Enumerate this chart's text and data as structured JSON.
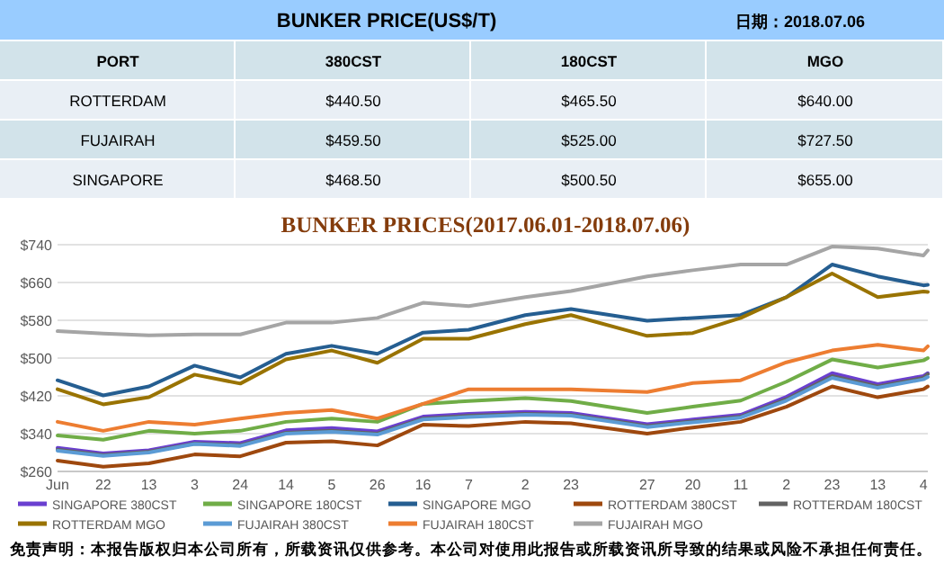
{
  "chart_data": [
    {
      "type": "other",
      "title": "BUNKER  PRICE(US$/T)",
      "subtitle": "日期：2018.07.06",
      "ylabel": "PORT",
      "categories": [
        "380CST",
        "180CST",
        "MGO"
      ],
      "y_categories": [
        "ROTTERDAM",
        "FUJAIRAH",
        "SINGAPORE"
      ],
      "cell_labels": [
        [
          "$440.50",
          "$465.50",
          "$640.00"
        ],
        [
          "$459.50",
          "$525.00",
          "$727.50"
        ],
        [
          "$468.50",
          "$500.50",
          "$655.00"
        ]
      ]
    },
    {
      "type": "line",
      "title": "BUNKER PRICES(2017.06.01-2018.07.06)",
      "legend": "bottom",
      "grid": "y",
      "x": [
        "2017-06-01",
        "2017-06-22",
        "2017-07-13",
        "2017-08-03",
        "2017-08-24",
        "2017-09-14",
        "2017-10-05",
        "2017-10-26",
        "2017-11-16",
        "2017-12-07",
        "2018-01-02",
        "2018-01-23",
        "2018-02-27",
        "2018-03-20",
        "2018-04-11",
        "2018-05-02",
        "2018-05-23",
        "2018-06-13",
        "2018-07-04",
        "2018-07-06"
      ],
      "xlim": [
        "2017-06-01",
        "2018-07-06"
      ],
      "xticks": [
        {
          "value": "2017-06-01",
          "label": "Jun"
        },
        {
          "value": "2017-06-22",
          "label": "22"
        },
        {
          "value": "2017-07-13",
          "label": "13"
        },
        {
          "value": "2017-08-03",
          "label": "3"
        },
        {
          "value": "2017-08-24",
          "label": "24"
        },
        {
          "value": "2017-09-14",
          "label": "14"
        },
        {
          "value": "2017-10-05",
          "label": "5"
        },
        {
          "value": "2017-10-26",
          "label": "26"
        },
        {
          "value": "2017-11-16",
          "label": "16"
        },
        {
          "value": "2017-12-07",
          "label": "7"
        },
        {
          "value": "2018-01-02",
          "label": "2"
        },
        {
          "value": "2018-01-23",
          "label": "23"
        },
        {
          "value": "2018-02-27",
          "label": "27"
        },
        {
          "value": "2018-03-20",
          "label": "20"
        },
        {
          "value": "2018-04-11",
          "label": "11"
        },
        {
          "value": "2018-05-02",
          "label": "2"
        },
        {
          "value": "2018-05-23",
          "label": "23"
        },
        {
          "value": "2018-06-13",
          "label": "13"
        },
        {
          "value": "2018-07-04",
          "label": "4"
        }
      ],
      "ylim": [
        260,
        740
      ],
      "yticks": [
        {
          "value": 260,
          "label": "$260"
        },
        {
          "value": 340,
          "label": "$340"
        },
        {
          "value": 420,
          "label": "$420"
        },
        {
          "value": 500,
          "label": "$500"
        },
        {
          "value": 580,
          "label": "$580"
        },
        {
          "value": 660,
          "label": "$660"
        },
        {
          "value": 740,
          "label": "$740"
        }
      ],
      "series": [
        {
          "name": "SINGAPORE 380CST",
          "color": "#6a3fd0",
          "values": [
            310,
            298,
            305,
            323,
            320,
            347,
            352,
            345,
            376,
            382,
            386,
            384,
            360,
            370,
            380,
            418,
            468,
            445,
            462,
            468
          ]
        },
        {
          "name": "SINGAPORE 180CST",
          "color": "#70ad47",
          "values": [
            336,
            327,
            346,
            340,
            346,
            365,
            372,
            365,
            403,
            409,
            415,
            409,
            384,
            397,
            410,
            450,
            497,
            480,
            495,
            500
          ]
        },
        {
          "name": "SINGAPORE MGO",
          "color": "#255e91",
          "values": [
            453,
            421,
            440,
            484,
            459,
            509,
            526,
            509,
            554,
            560,
            591,
            604,
            579,
            585,
            591,
            629,
            698,
            673,
            654,
            655
          ]
        },
        {
          "name": "ROTTERDAM 380CST",
          "color": "#9e480e",
          "values": [
            283,
            270,
            277,
            296,
            292,
            321,
            324,
            315,
            359,
            356,
            365,
            362,
            340,
            353,
            365,
            397,
            440,
            417,
            434,
            440
          ]
        },
        {
          "name": "ROTTERDAM 180CST",
          "color": "#636363",
          "values": [
            306,
            295,
            302,
            319,
            316,
            342,
            346,
            340,
            372,
            378,
            382,
            380,
            356,
            366,
            376,
            413,
            462,
            440,
            458,
            466
          ]
        },
        {
          "name": "ROTTERDAM MGO",
          "color": "#997300",
          "values": [
            434,
            402,
            417,
            465,
            446,
            497,
            516,
            490,
            541,
            541,
            572,
            591,
            547,
            553,
            585,
            629,
            679,
            629,
            641,
            640
          ]
        },
        {
          "name": "FUJAIRAH 380CST",
          "color": "#5b9bd5",
          "values": [
            304,
            293,
            300,
            318,
            314,
            340,
            344,
            338,
            370,
            375,
            380,
            378,
            354,
            364,
            374,
            410,
            458,
            437,
            455,
            460
          ]
        },
        {
          "name": "FUJAIRAH 180CST",
          "color": "#ed7d31",
          "values": [
            365,
            346,
            365,
            359,
            372,
            384,
            390,
            372,
            403,
            434,
            434,
            434,
            428,
            447,
            453,
            491,
            516,
            528,
            516,
            525
          ]
        },
        {
          "name": "FUJAIRAH MGO",
          "color": "#a5a5a5",
          "values": [
            557,
            552,
            548,
            550,
            550,
            575,
            575,
            585,
            617,
            610,
            629,
            642,
            673,
            686,
            698,
            698,
            736,
            732,
            717,
            728
          ]
        }
      ],
      "annotations": [
        "免责声明：本报告版权归本公司所有，所载资讯仅供参考。本公司对使用此报告或所载资讯所导致的结果或风险不承担任何责任。"
      ]
    }
  ]
}
